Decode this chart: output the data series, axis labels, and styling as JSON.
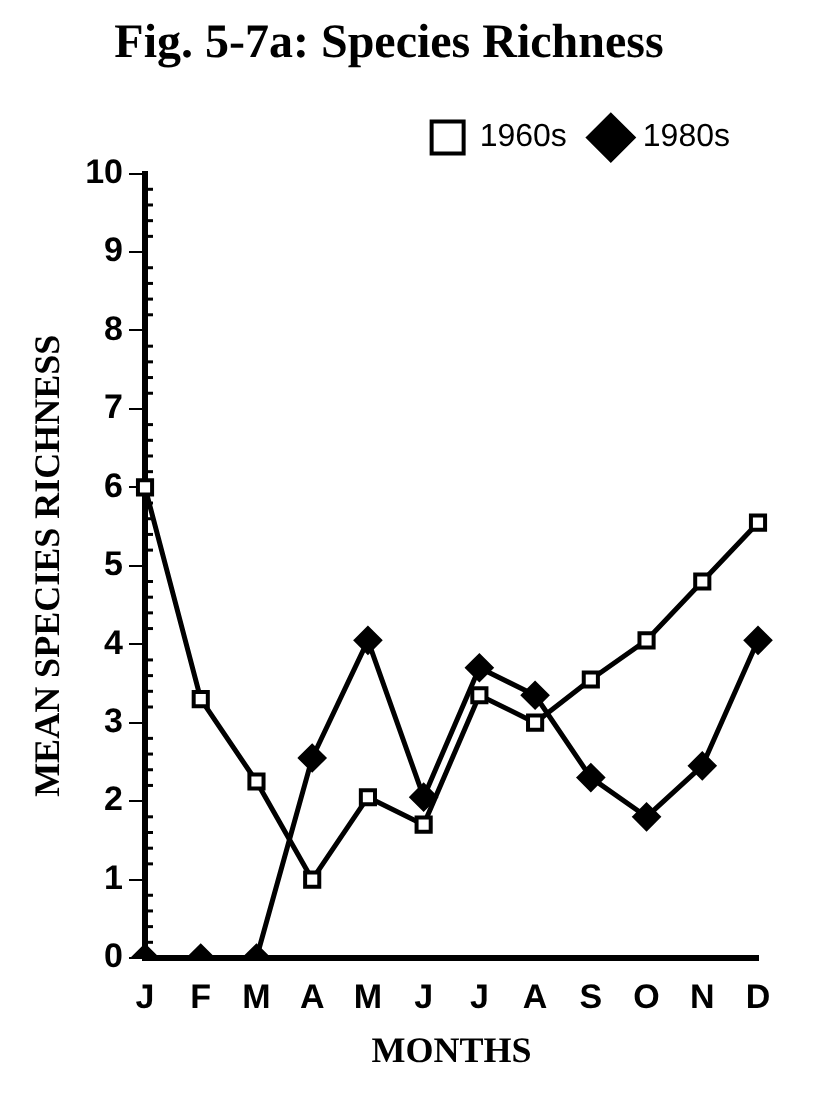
{
  "chart_data": {
    "type": "line",
    "title": "Fig. 5-7a: Species Richness",
    "xlabel": "MONTHS",
    "ylabel": "MEAN SPECIES RICHNESS",
    "categories": [
      "J",
      "F",
      "M",
      "A",
      "M",
      "J",
      "J",
      "A",
      "S",
      "O",
      "N",
      "D"
    ],
    "series": [
      {
        "name": "1960s",
        "color": "#000000",
        "marker": "square",
        "values": [
          6,
          3.3,
          2.25,
          1.0,
          2.05,
          1.7,
          3.35,
          3.0,
          3.55,
          4.05,
          4.8,
          5.55
        ]
      },
      {
        "name": "1980s",
        "color": "#000000",
        "marker": "diamond",
        "values": [
          0,
          0,
          0,
          2.55,
          4.05,
          2.05,
          3.7,
          3.35,
          2.3,
          1.8,
          2.45,
          4.05
        ]
      }
    ],
    "ylim": [
      0,
      10
    ],
    "yticks": [
      0,
      1,
      2,
      3,
      4,
      5,
      6,
      7,
      8,
      9,
      10
    ],
    "grid": false,
    "legend": "top right",
    "line_style": "solid"
  }
}
